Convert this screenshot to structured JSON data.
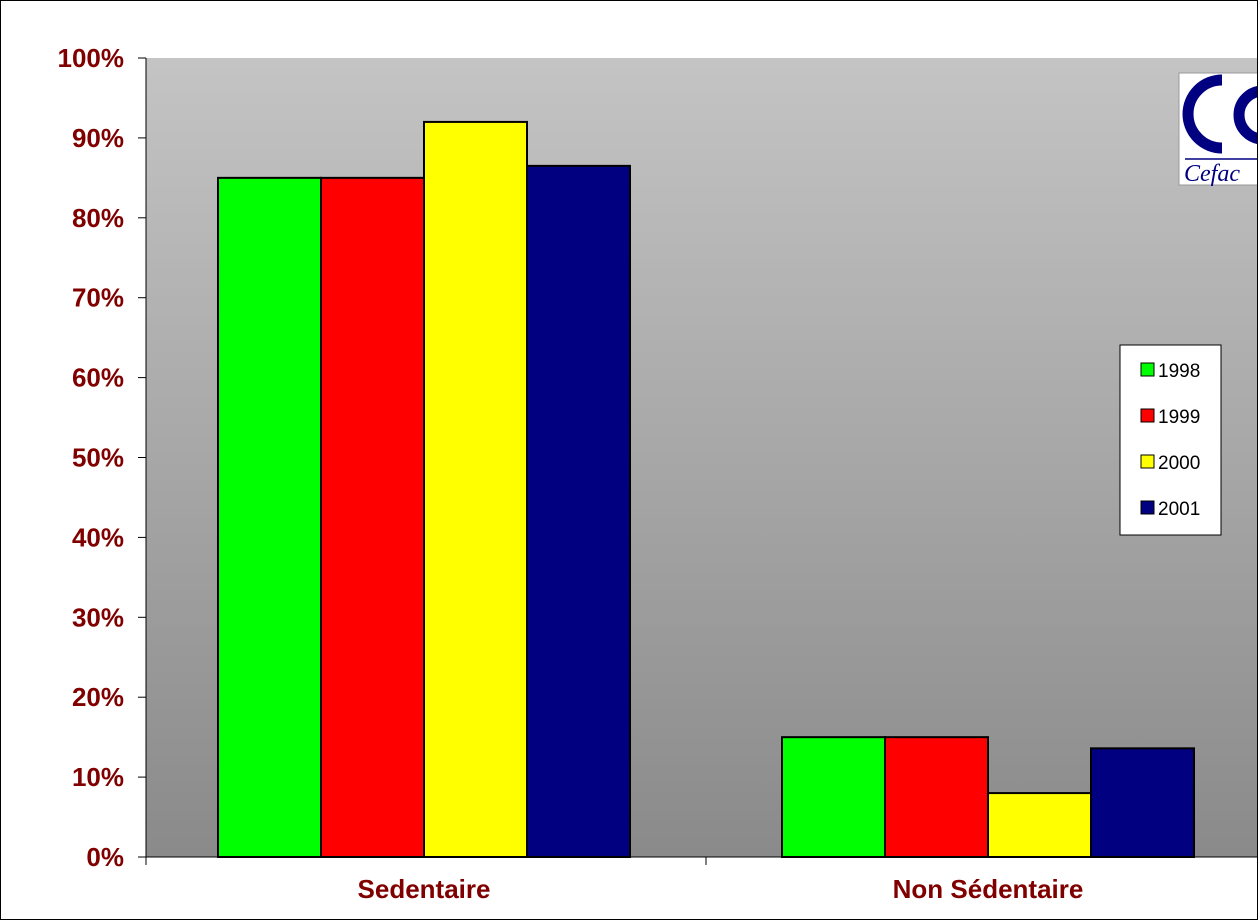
{
  "chart_data": {
    "type": "bar",
    "title": "",
    "xlabel": "",
    "ylabel": "",
    "categories": [
      "Sedentaire",
      "Non Sédentaire"
    ],
    "series": [
      {
        "name": "1998",
        "color": "#00ff00",
        "values": [
          85,
          15
        ]
      },
      {
        "name": "1999",
        "color": "#ff0000",
        "values": [
          85,
          15
        ]
      },
      {
        "name": "2000",
        "color": "#ffff00",
        "values": [
          92,
          8
        ]
      },
      {
        "name": "2001",
        "color": "#000080",
        "values": [
          86.5,
          13.6
        ]
      }
    ],
    "ylim": [
      0,
      100
    ],
    "yticks": [
      {
        "value": 0,
        "label": "0%"
      },
      {
        "value": 10,
        "label": "10%"
      },
      {
        "value": 20,
        "label": "20%"
      },
      {
        "value": 30,
        "label": "30%"
      },
      {
        "value": 40,
        "label": "40%"
      },
      {
        "value": 50,
        "label": "50%"
      },
      {
        "value": 60,
        "label": "60%"
      },
      {
        "value": 70,
        "label": "70%"
      },
      {
        "value": 80,
        "label": "80%"
      },
      {
        "value": 90,
        "label": "90%"
      },
      {
        "value": 100,
        "label": "100%"
      }
    ],
    "grid": false,
    "legend_position": "right",
    "tick_label_color": "#800000",
    "plot_background": "gray gradient"
  },
  "logo": {
    "text": "Cefac",
    "color": "#000080"
  }
}
